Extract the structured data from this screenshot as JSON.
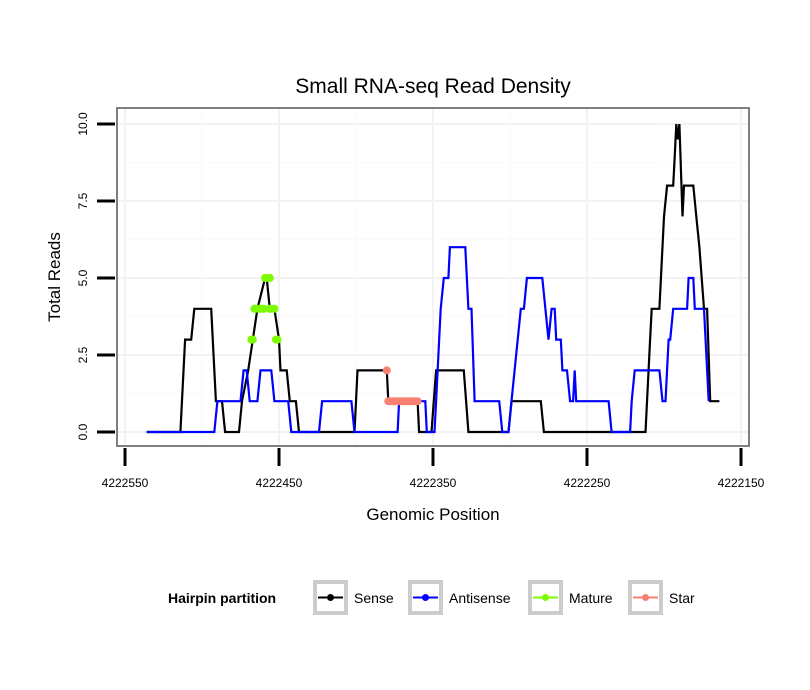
{
  "chart_data": {
    "type": "line",
    "title": "Small RNA-seq Read Density",
    "xlabel": "Genomic Position",
    "ylabel": "Total Reads",
    "xlim": [
      4222550,
      4222150
    ],
    "x_reversed": true,
    "ylim": [
      0,
      10
    ],
    "x_ticks": [
      4222550,
      4222450,
      4222350,
      4222250,
      4222150
    ],
    "x_tick_labels": [
      "4222550",
      "4222450",
      "4222350",
      "4222250",
      "4222150"
    ],
    "y_ticks": [
      0,
      2.5,
      5,
      7.5,
      10
    ],
    "y_tick_labels": [
      "0.0",
      "2.5",
      "5.0",
      "7.5",
      "10.0"
    ],
    "grid": true,
    "legend": {
      "title": "Hairpin partition",
      "placement": "bottom",
      "entries": [
        {
          "label": "Sense",
          "color": "#000000"
        },
        {
          "label": "Antisense",
          "color": "#0000ff"
        },
        {
          "label": "Mature",
          "color": "#7cfc00"
        },
        {
          "label": "Star",
          "color": "#fa8072"
        }
      ]
    },
    "series": [
      {
        "name": "Sense",
        "color": "#000000",
        "style": "line",
        "points": [
          [
            4222536,
            0
          ],
          [
            4222514,
            0
          ],
          [
            4222511,
            3
          ],
          [
            4222507,
            3
          ],
          [
            4222505,
            4
          ],
          [
            4222494,
            4
          ],
          [
            4222491,
            1
          ],
          [
            4222487,
            1
          ],
          [
            4222485,
            0
          ],
          [
            4222476,
            0
          ],
          [
            4222474,
            1
          ],
          [
            4222470,
            2
          ],
          [
            4222467,
            3
          ],
          [
            4222464,
            4
          ],
          [
            4222459,
            5
          ],
          [
            4222458,
            5
          ],
          [
            4222456,
            4
          ],
          [
            4222453,
            4
          ],
          [
            4222450,
            3
          ],
          [
            4222449,
            2
          ],
          [
            4222445,
            2
          ],
          [
            4222443,
            1
          ],
          [
            4222439,
            1
          ],
          [
            4222437,
            0
          ],
          [
            4222401,
            0
          ],
          [
            4222399,
            2
          ],
          [
            4222380,
            2
          ],
          [
            4222379,
            1
          ],
          [
            4222360,
            1
          ],
          [
            4222359,
            0
          ],
          [
            4222351,
            0
          ],
          [
            4222348,
            2
          ],
          [
            4222330,
            2
          ],
          [
            4222327,
            0
          ],
          [
            4222301,
            0
          ],
          [
            4222299,
            1
          ],
          [
            4222280,
            1
          ],
          [
            4222278,
            0
          ],
          [
            4222212,
            0
          ],
          [
            4222209,
            3
          ],
          [
            4222208,
            4
          ],
          [
            4222203,
            4
          ],
          [
            4222200,
            7
          ],
          [
            4222198,
            8
          ],
          [
            4222194,
            8
          ],
          [
            4222193,
            9
          ],
          [
            4222192,
            10
          ],
          [
            4222191,
            9.5
          ],
          [
            4222190,
            10
          ],
          [
            4222188,
            7
          ],
          [
            4222187,
            8
          ],
          [
            4222181,
            8
          ],
          [
            4222179,
            7
          ],
          [
            4222177,
            6
          ],
          [
            4222174,
            4
          ],
          [
            4222172,
            4
          ],
          [
            4222170,
            1
          ],
          [
            4222164,
            1
          ]
        ]
      },
      {
        "name": "Antisense",
        "color": "#0000ff",
        "style": "line",
        "points": [
          [
            4222536,
            0
          ],
          [
            4222492,
            0
          ],
          [
            4222490,
            1
          ],
          [
            4222475,
            1
          ],
          [
            4222473,
            2
          ],
          [
            4222471,
            2
          ],
          [
            4222469,
            1
          ],
          [
            4222464,
            1
          ],
          [
            4222462,
            2
          ],
          [
            4222455,
            2
          ],
          [
            4222453,
            1
          ],
          [
            4222444,
            1
          ],
          [
            4222442,
            0
          ],
          [
            4222424,
            0
          ],
          [
            4222422,
            1
          ],
          [
            4222403,
            1
          ],
          [
            4222401,
            0
          ],
          [
            4222373,
            0
          ],
          [
            4222372,
            1
          ],
          [
            4222355,
            1
          ],
          [
            4222354,
            0
          ],
          [
            4222349,
            0
          ],
          [
            4222348,
            1
          ],
          [
            4222345,
            4
          ],
          [
            4222343,
            5
          ],
          [
            4222340,
            5
          ],
          [
            4222339,
            6
          ],
          [
            4222329,
            6
          ],
          [
            4222327,
            4
          ],
          [
            4222325,
            4
          ],
          [
            4222323,
            1
          ],
          [
            4222307,
            1
          ],
          [
            4222305,
            0
          ],
          [
            4222301,
            0
          ],
          [
            4222299,
            1
          ],
          [
            4222297,
            2
          ],
          [
            4222295,
            3
          ],
          [
            4222293,
            4
          ],
          [
            4222291,
            4
          ],
          [
            4222289,
            5
          ],
          [
            4222279,
            5
          ],
          [
            4222277,
            4
          ],
          [
            4222275,
            3
          ],
          [
            4222273,
            4
          ],
          [
            4222271,
            4
          ],
          [
            4222270,
            3
          ],
          [
            4222267,
            3
          ],
          [
            4222266,
            2
          ],
          [
            4222263,
            2
          ],
          [
            4222261,
            1
          ],
          [
            4222259,
            1
          ],
          [
            4222258,
            2
          ],
          [
            4222257,
            1
          ],
          [
            4222236,
            1
          ],
          [
            4222234,
            0
          ],
          [
            4222222,
            0
          ],
          [
            4222221,
            1
          ],
          [
            4222219,
            2
          ],
          [
            4222203,
            2
          ],
          [
            4222201,
            1
          ],
          [
            4222199,
            1
          ],
          [
            4222197,
            3
          ],
          [
            4222196,
            3
          ],
          [
            4222194,
            4
          ],
          [
            4222185,
            4
          ],
          [
            4222184,
            5
          ],
          [
            4222181,
            5
          ],
          [
            4222180,
            4
          ],
          [
            4222174,
            4
          ],
          [
            4222171,
            1
          ]
        ]
      },
      {
        "name": "Mature",
        "color": "#7cfc00",
        "style": "points",
        "points": [
          [
            4222468,
            3
          ],
          [
            4222467,
            3
          ],
          [
            4222466,
            4
          ],
          [
            4222465,
            4
          ],
          [
            4222463,
            4
          ],
          [
            4222462,
            4
          ],
          [
            4222461,
            4
          ],
          [
            4222460,
            4
          ],
          [
            4222459,
            5
          ],
          [
            4222458,
            5
          ],
          [
            4222456,
            5
          ],
          [
            4222456,
            4
          ],
          [
            4222455,
            4
          ],
          [
            4222453,
            4
          ],
          [
            4222452,
            3
          ],
          [
            4222451,
            3
          ]
        ]
      },
      {
        "name": "Star",
        "color": "#fa8072",
        "style": "points",
        "points": [
          [
            4222380,
            2
          ],
          [
            4222379,
            1
          ],
          [
            4222378,
            1
          ],
          [
            4222376,
            1
          ],
          [
            4222375,
            1
          ],
          [
            4222374,
            1
          ],
          [
            4222372,
            1
          ],
          [
            4222371,
            1
          ],
          [
            4222370,
            1
          ],
          [
            4222368,
            1
          ],
          [
            4222367,
            1
          ],
          [
            4222366,
            1
          ],
          [
            4222364,
            1
          ],
          [
            4222363,
            1
          ],
          [
            4222362,
            1
          ],
          [
            4222360,
            1
          ]
        ]
      }
    ]
  }
}
